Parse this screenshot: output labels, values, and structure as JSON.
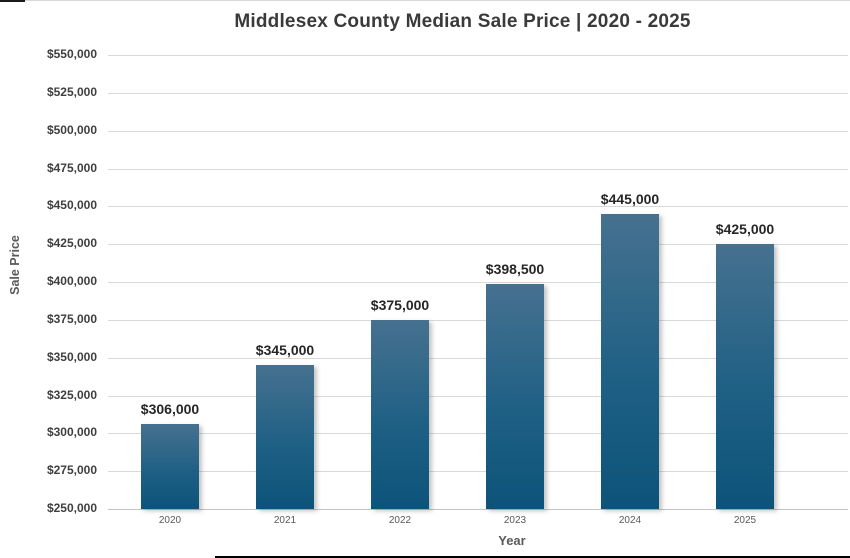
{
  "page": {
    "background": "#ffffff"
  },
  "chart": {
    "title": "Middlesex County Median Sale Price | 2020 - 2025",
    "x_axis_title": "Year",
    "y_axis_title": "Sale Price"
  },
  "chart_data": {
    "type": "bar",
    "title": "Middlesex County Median Sale Price | 2020 - 2025",
    "xlabel": "Year",
    "ylabel": "Sale Price",
    "categories": [
      "2020",
      "2021",
      "2022",
      "2023",
      "2024",
      "2025"
    ],
    "values": [
      306000,
      345000,
      375000,
      398500,
      445000,
      425000
    ],
    "data_labels": [
      "$306,000",
      "$345,000",
      "$375,000",
      "$398,500",
      "$445,000",
      "$425,000"
    ],
    "ylim": [
      250000,
      550000
    ],
    "ytick_step": 25000,
    "ytick_labels_top_to_bottom": [
      "$550,000",
      "$525,000",
      "$500,000",
      "$475,000",
      "$450,000",
      "$425,000",
      "$400,000",
      "$375,000",
      "$350,000",
      "$325,000",
      "$300,000",
      "$275,000",
      "$250,000"
    ],
    "grid": true,
    "legend": false,
    "colors": {
      "bar_gradient_top": "#46718f",
      "bar_gradient_bottom": "#0d5379",
      "gridline": "#d9d9d9",
      "axis_line": "#c3c3c3",
      "title": "#3a3a3a",
      "ytick_text": "#3f3f3f",
      "xtick_text": "#595959",
      "data_label_text": "#262626"
    }
  }
}
